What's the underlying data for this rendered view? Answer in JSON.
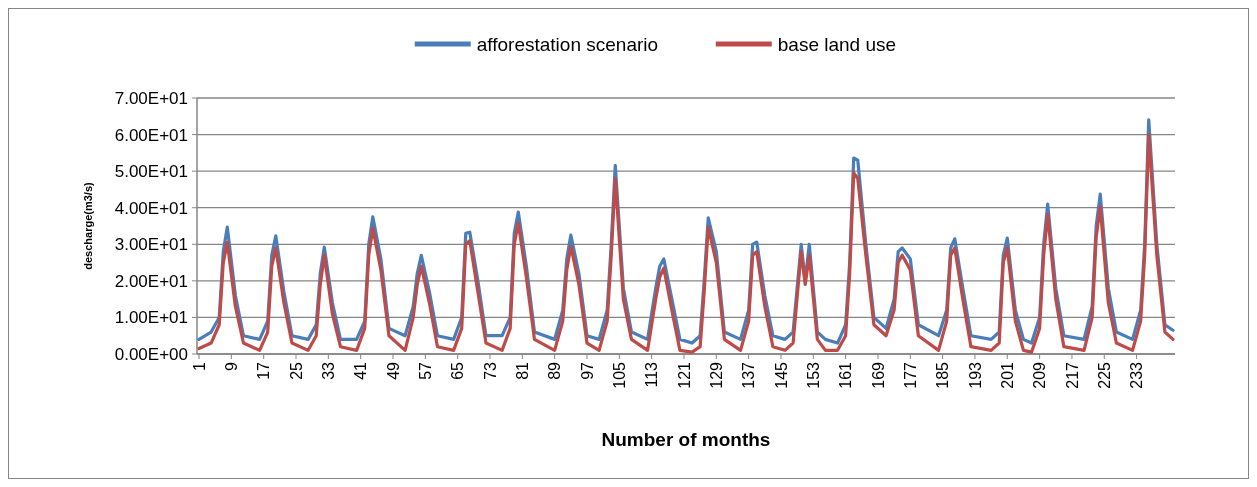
{
  "chart_data": {
    "type": "line",
    "xlabel": "Number of  months",
    "ylabel": "descharge(m3/s)",
    "legend": "top",
    "grid": "y",
    "marker": "none",
    "line_style": "solid",
    "xlim": [
      0.5,
      242.5
    ],
    "xticks": [
      1,
      9,
      17,
      25,
      33,
      41,
      49,
      57,
      65,
      73,
      81,
      89,
      97,
      105,
      113,
      121,
      129,
      137,
      145,
      153,
      161,
      169,
      177,
      185,
      193,
      201,
      209,
      217,
      225,
      233
    ],
    "ylim": [
      0,
      70
    ],
    "yticks": [
      {
        "value": 0,
        "label": "0.00E+00"
      },
      {
        "value": 10,
        "label": "1.00E+01"
      },
      {
        "value": 20,
        "label": "2.00E+01"
      },
      {
        "value": 30,
        "label": "3.00E+01"
      },
      {
        "value": 40,
        "label": "4.00E+01"
      },
      {
        "value": 50,
        "label": "5.00E+01"
      },
      {
        "value": 60,
        "label": "6.00E+01"
      },
      {
        "value": 70,
        "label": "7.00E+01"
      }
    ],
    "x": [
      1,
      4,
      6,
      7,
      8,
      10,
      12,
      16,
      18,
      19,
      20,
      22,
      24,
      28,
      30,
      31,
      32,
      34,
      36,
      40,
      42,
      43,
      44,
      46,
      48,
      52,
      54,
      55,
      56,
      58,
      60,
      64,
      66,
      67,
      68,
      70,
      72,
      76,
      78,
      79,
      80,
      82,
      84,
      89,
      91,
      92,
      93,
      95,
      97,
      100,
      102,
      103,
      104,
      106,
      108,
      112,
      114,
      115,
      116,
      118,
      120,
      123,
      125,
      126,
      127,
      129,
      131,
      135,
      137,
      138,
      139,
      141,
      143,
      146,
      148,
      150,
      151,
      152,
      154,
      156,
      159,
      161,
      162,
      163,
      164,
      166,
      168,
      171,
      173,
      174,
      175,
      177,
      179,
      184,
      186,
      187,
      188,
      190,
      192,
      197,
      199,
      200,
      201,
      203,
      205,
      207,
      209,
      210,
      211,
      213,
      215,
      220,
      222,
      223,
      224,
      226,
      228,
      232,
      234,
      235,
      236,
      238,
      240,
      242
    ],
    "series": [
      {
        "name": "afforestation scenario",
        "color": "#4a7ebb",
        "values": [
          4,
          6,
          10,
          28,
          34.7,
          16,
          5,
          4,
          9,
          27,
          32.3,
          17,
          5,
          4,
          8,
          22,
          29.2,
          14,
          4,
          4,
          9,
          30,
          37.5,
          26,
          7,
          5,
          13,
          22,
          27,
          17,
          5,
          4,
          10,
          33,
          33.3,
          20,
          5,
          5,
          10,
          33,
          38.8,
          24,
          6,
          4,
          12,
          26,
          32.5,
          22,
          5,
          4,
          12,
          30,
          51.6,
          18,
          6,
          4,
          18,
          24,
          26,
          15,
          4,
          3,
          5,
          20,
          37.2,
          28,
          6,
          4,
          12,
          30,
          30.6,
          16,
          5,
          4,
          6,
          30,
          20,
          30,
          6,
          4,
          3,
          8,
          25,
          53.6,
          53,
          30,
          10,
          7,
          15,
          28,
          29,
          26,
          8,
          5,
          12,
          29,
          31.5,
          18,
          5,
          4,
          6,
          27,
          31.7,
          12,
          4,
          3,
          10,
          30,
          41,
          18,
          5,
          4,
          13,
          35,
          43.7,
          18,
          6,
          4,
          12,
          30,
          64,
          30,
          8,
          6.5
        ]
      },
      {
        "name": "base land use",
        "color": "#be4b48",
        "values": [
          1.5,
          3,
          8,
          25,
          30.5,
          13,
          3,
          1,
          6,
          24,
          29,
          14,
          3,
          1,
          5,
          19,
          27,
          11,
          2,
          1,
          7,
          27,
          34.4,
          23,
          5,
          1,
          10,
          19,
          24,
          14,
          2,
          1,
          7,
          30,
          31,
          17,
          3,
          1,
          7,
          30,
          35.8,
          21,
          4,
          1,
          9,
          23,
          29.5,
          19,
          3,
          1,
          9,
          27,
          48,
          15,
          4,
          1,
          15,
          21,
          23.5,
          12,
          1,
          0.5,
          2,
          17,
          34.7,
          25,
          4,
          1,
          9,
          27,
          28,
          13,
          2,
          1,
          3,
          28,
          19,
          27,
          4,
          1,
          1,
          5,
          22,
          49.5,
          48,
          27,
          8,
          5,
          12,
          25,
          27,
          23,
          5,
          1,
          9,
          27,
          29,
          15,
          2,
          1,
          3,
          25,
          29,
          9,
          1,
          0.5,
          7,
          27,
          38.2,
          15,
          2,
          1,
          10,
          32,
          40.3,
          14,
          3,
          1,
          9,
          27,
          60,
          27,
          6,
          4
        ]
      }
    ]
  }
}
